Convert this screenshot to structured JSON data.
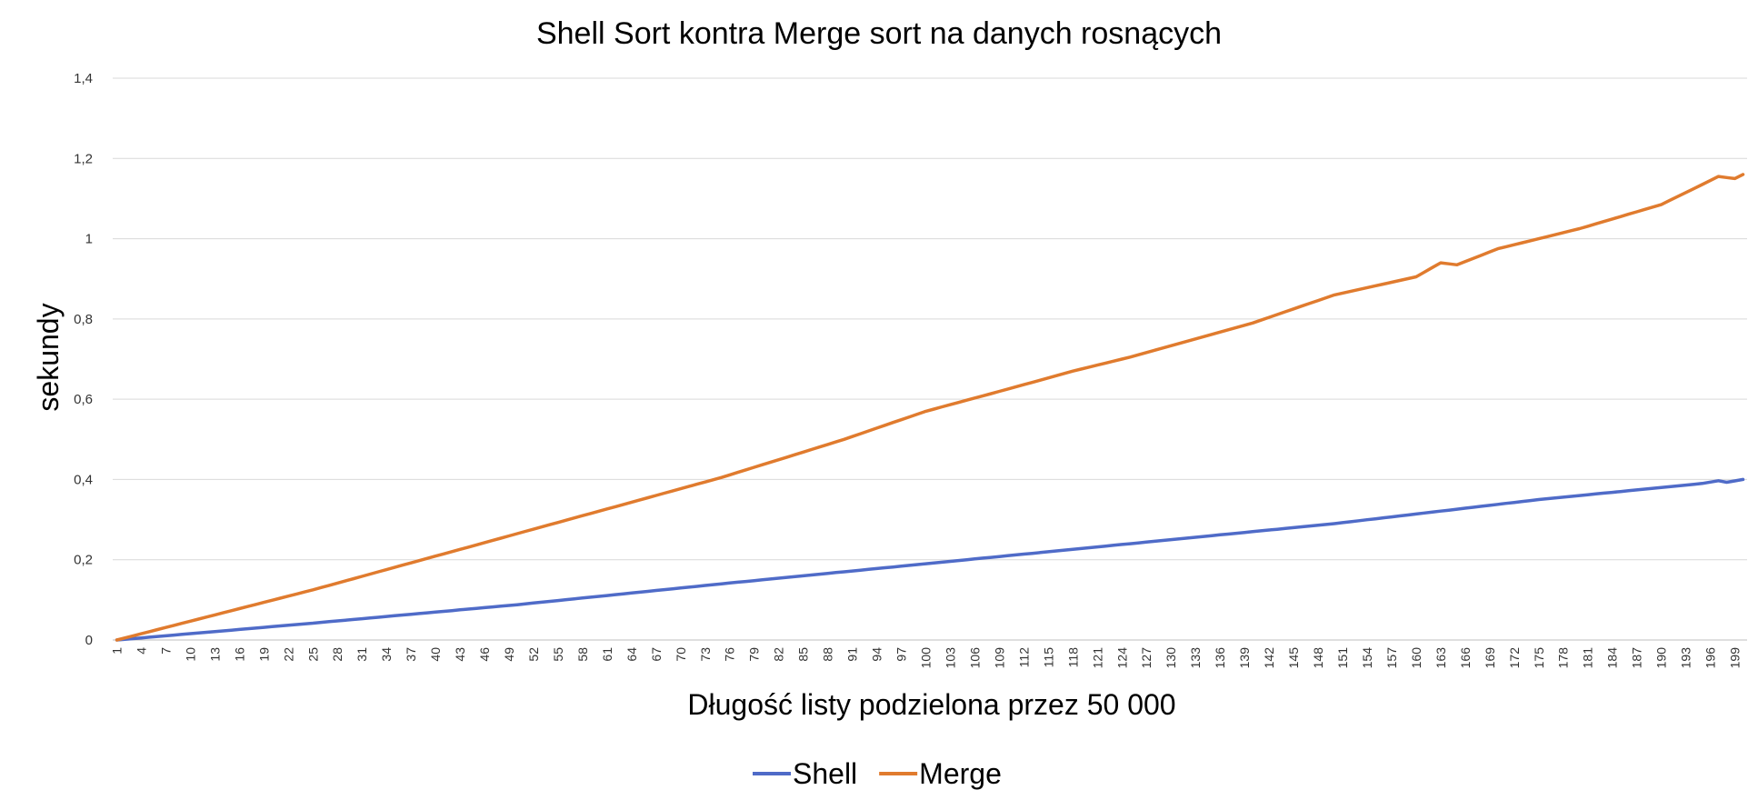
{
  "chart_data": {
    "type": "line",
    "title": "Shell Sort kontra Merge sort na danych rosnących",
    "xlabel": "Długość listy podzielona przez 50 000",
    "ylabel": "sekundy",
    "x_range": [
      1,
      200
    ],
    "x_tick_labels": [
      "1",
      "4",
      "7",
      "10",
      "13",
      "16",
      "19",
      "22",
      "25",
      "28",
      "31",
      "34",
      "37",
      "40",
      "43",
      "46",
      "49",
      "52",
      "55",
      "58",
      "61",
      "64",
      "67",
      "70",
      "73",
      "76",
      "79",
      "82",
      "85",
      "88",
      "91",
      "94",
      "97",
      "100",
      "103",
      "106",
      "109",
      "112",
      "115",
      "118",
      "121",
      "124",
      "127",
      "130",
      "133",
      "136",
      "139",
      "142",
      "145",
      "148",
      "151",
      "154",
      "157",
      "160",
      "163",
      "166",
      "169",
      "172",
      "175",
      "178",
      "181",
      "184",
      "187",
      "190",
      "193",
      "196",
      "199"
    ],
    "ylim": [
      0,
      1.4
    ],
    "y_tick_labels": [
      "0",
      "0,2",
      "0,4",
      "0,6",
      "0,8",
      "1",
      "1,2",
      "1,4"
    ],
    "grid": true,
    "legend_position": "bottom",
    "series": [
      {
        "name": "Shell",
        "color": "#4f6bc8",
        "points": [
          [
            1,
            0
          ],
          [
            25,
            0.042
          ],
          [
            50,
            0.088
          ],
          [
            75,
            0.14
          ],
          [
            100,
            0.19
          ],
          [
            125,
            0.24
          ],
          [
            150,
            0.29
          ],
          [
            175,
            0.35
          ],
          [
            195,
            0.39
          ],
          [
            197,
            0.397
          ],
          [
            198,
            0.393
          ],
          [
            200,
            0.4
          ]
        ]
      },
      {
        "name": "Merge",
        "color": "#e07b2e",
        "points": [
          [
            1,
            0
          ],
          [
            25,
            0.125
          ],
          [
            50,
            0.265
          ],
          [
            75,
            0.405
          ],
          [
            90,
            0.5
          ],
          [
            100,
            0.57
          ],
          [
            110,
            0.625
          ],
          [
            118,
            0.67
          ],
          [
            125,
            0.705
          ],
          [
            140,
            0.79
          ],
          [
            150,
            0.86
          ],
          [
            160,
            0.905
          ],
          [
            163,
            0.94
          ],
          [
            165,
            0.935
          ],
          [
            170,
            0.975
          ],
          [
            180,
            1.025
          ],
          [
            190,
            1.085
          ],
          [
            197,
            1.155
          ],
          [
            199,
            1.15
          ],
          [
            200,
            1.16
          ]
        ]
      }
    ]
  }
}
